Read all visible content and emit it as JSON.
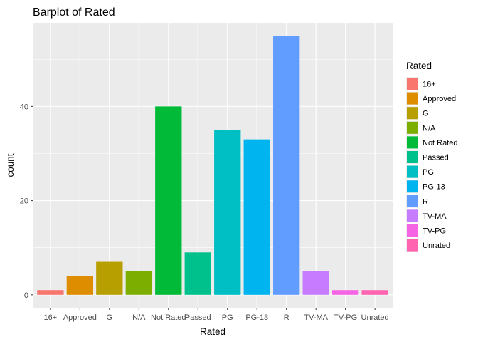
{
  "chart_data": {
    "type": "bar",
    "title": "Barplot of Rated",
    "xlabel": "Rated",
    "ylabel": "count",
    "categories": [
      "16+",
      "Approved",
      "G",
      "N/A",
      "Not Rated",
      "Passed",
      "PG",
      "PG-13",
      "R",
      "TV-MA",
      "TV-PG",
      "Unrated"
    ],
    "values": [
      1,
      4,
      7,
      5,
      40,
      9,
      35,
      33,
      55,
      5,
      1,
      1
    ],
    "colors": [
      "#F8766D",
      "#DE8C00",
      "#B79F00",
      "#7CAE00",
      "#00BA38",
      "#00C08B",
      "#00BFC4",
      "#00B4F0",
      "#619CFF",
      "#C77CFF",
      "#F564E3",
      "#FF64B0"
    ],
    "ylim": [
      -2.75,
      57.75
    ],
    "yticks": [
      0,
      20,
      40
    ],
    "grid": true,
    "panel_background": "#EBEBEB",
    "legend": {
      "title": "Rated",
      "position": "right"
    }
  }
}
